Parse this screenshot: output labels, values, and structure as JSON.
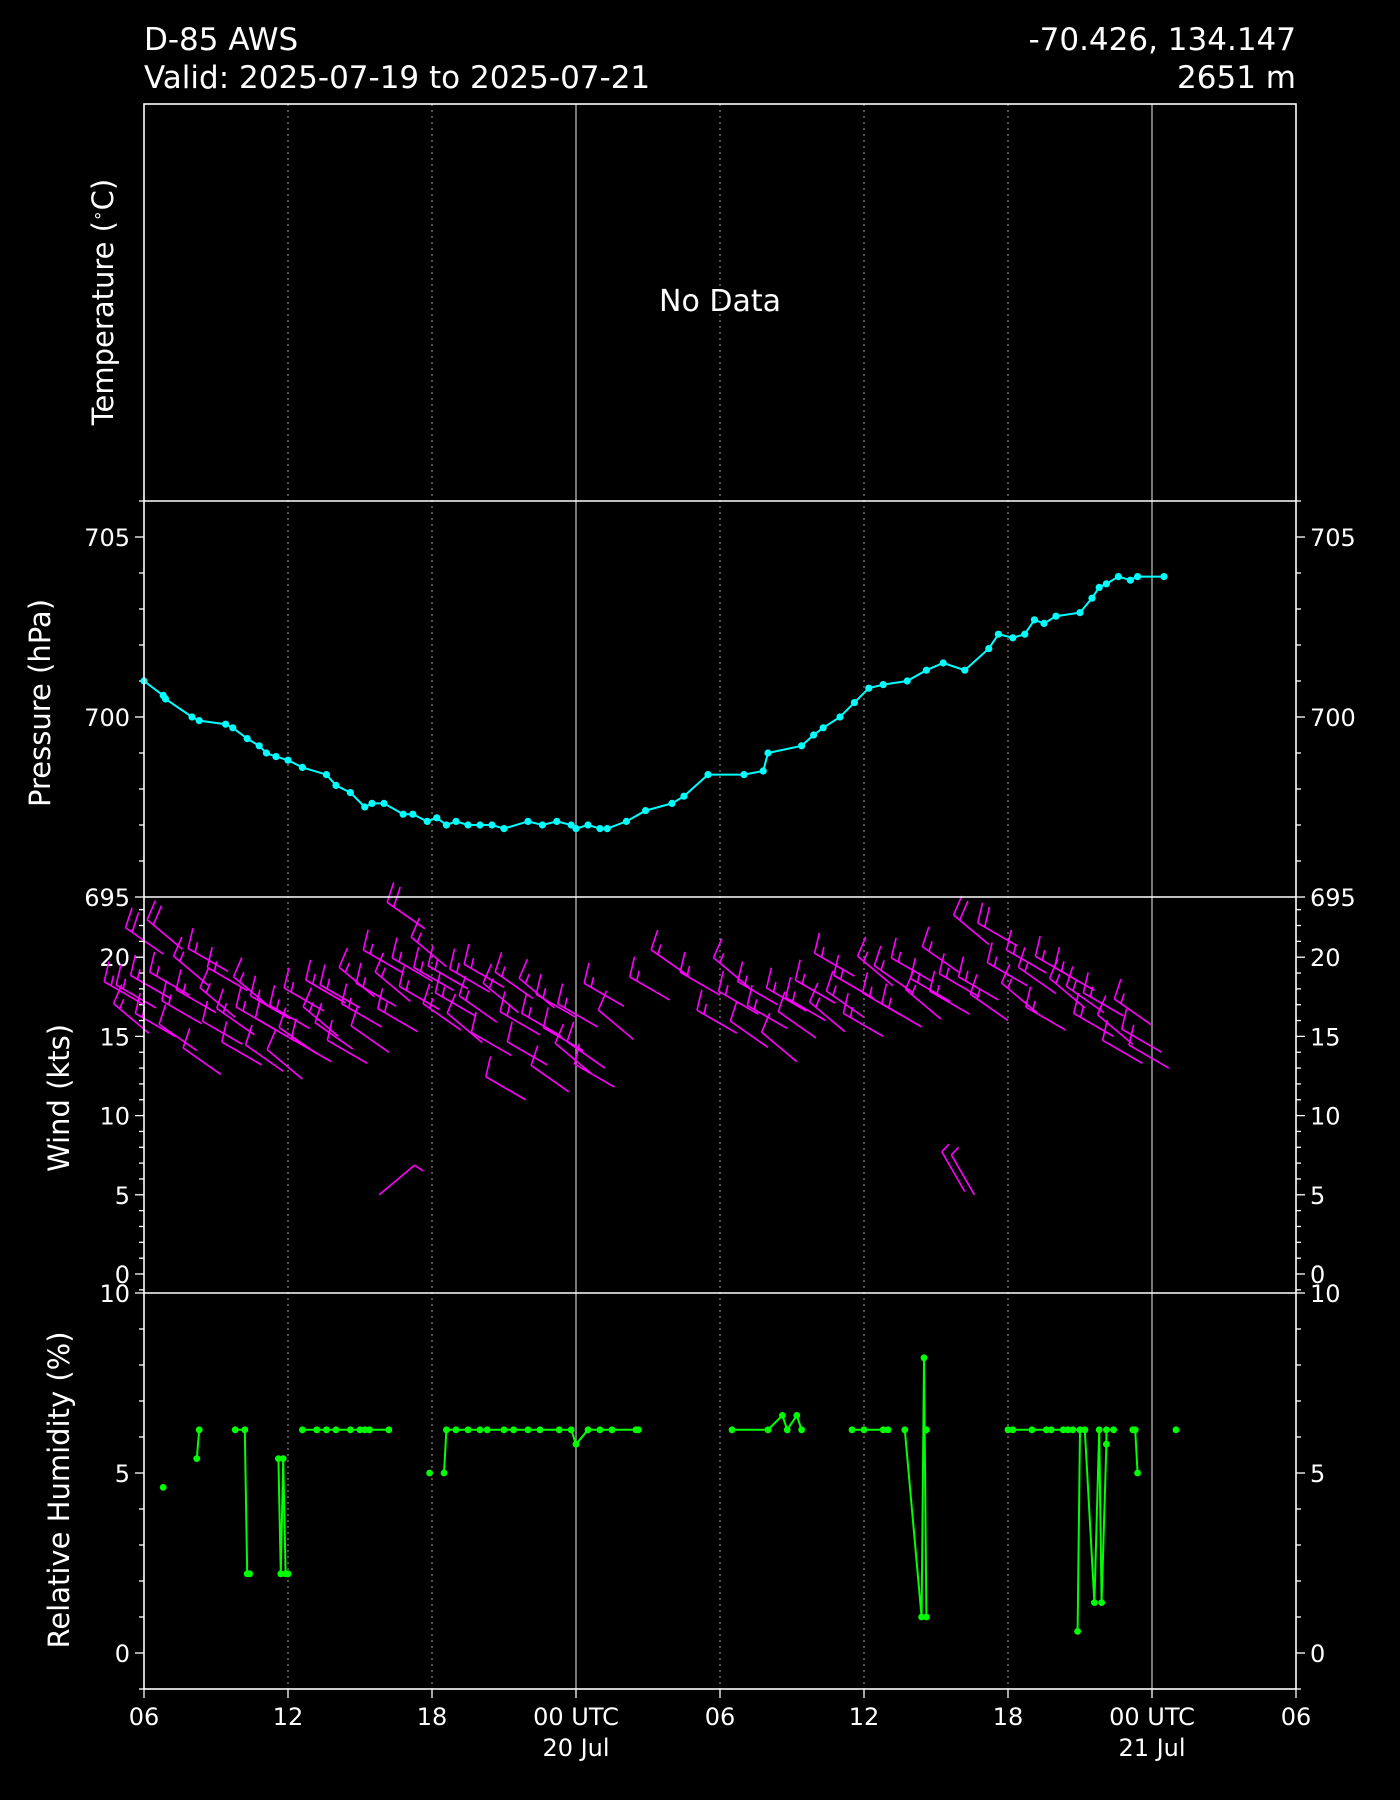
{
  "header": {
    "station": "D-85 AWS",
    "valid": "Valid: 2025-07-19 to 2025-07-21",
    "coords": "-70.426, 134.147",
    "elevation": "2651 m"
  },
  "colors": {
    "background": "#000000",
    "axes": "#ffffff",
    "pressure": "#00ffff",
    "wind": "#ff00ff",
    "humidity": "#00ff00"
  },
  "chart_data": [
    {
      "type": "line",
      "panel": "temperature",
      "ylabel": "Temperature ($^\\circ$C)",
      "ylabel_text": "Temperature (",
      "ylabel_deg": "∘",
      "ylabel_tail": "C)",
      "annotation": "No Data",
      "series": []
    },
    {
      "type": "line",
      "panel": "pressure",
      "ylabel": "Pressure (hPa)",
      "ylim": [
        695,
        706
      ],
      "yticks": [
        "695",
        "700",
        "705"
      ],
      "marker": "dot",
      "series": [
        {
          "x": [
            6.0,
            6.8,
            6.9,
            8.0,
            8.3,
            9.4,
            9.7,
            10.3,
            10.8,
            11.1,
            11.5,
            12.0,
            12.6,
            13.6,
            14.0,
            14.6,
            15.2,
            15.5,
            16.0,
            16.8,
            17.2,
            17.8,
            18.2,
            18.6,
            19.0,
            19.5,
            20.0,
            20.5,
            21.0,
            22.0,
            22.6,
            23.2,
            23.8,
            24.0,
            24.5,
            25.0,
            25.3,
            26.1,
            26.9,
            28.0,
            28.5,
            29.5,
            31.0,
            31.8,
            32.0,
            33.4,
            33.9,
            34.3,
            35.0,
            35.6,
            36.2,
            36.8,
            37.8,
            38.6,
            39.3,
            40.2,
            41.2,
            41.6,
            42.2,
            42.7,
            43.1,
            43.5,
            44.0,
            45.0,
            45.5,
            45.8,
            46.1,
            46.6,
            47.1,
            47.4,
            48.5
          ],
          "y": [
            701.0,
            700.6,
            700.5,
            700.0,
            699.9,
            699.8,
            699.7,
            699.4,
            699.2,
            699.0,
            698.9,
            698.8,
            698.6,
            698.4,
            698.1,
            697.9,
            697.5,
            697.6,
            697.6,
            697.3,
            697.3,
            697.1,
            697.2,
            697.0,
            697.1,
            697.0,
            697.0,
            697.0,
            696.9,
            697.1,
            697.0,
            697.1,
            697.0,
            696.9,
            697.0,
            696.9,
            696.9,
            697.1,
            697.4,
            697.6,
            697.8,
            698.4,
            698.4,
            698.5,
            699.0,
            699.2,
            699.5,
            699.7,
            700.0,
            700.4,
            700.8,
            700.9,
            701.0,
            701.3,
            701.5,
            701.3,
            701.9,
            702.3,
            702.2,
            702.3,
            702.7,
            702.6,
            702.8,
            702.9,
            703.3,
            703.6,
            703.7,
            703.9,
            703.8,
            703.9,
            703.9
          ]
        }
      ]
    },
    {
      "type": "scatter",
      "panel": "wind",
      "ylabel": "Wind (kts)",
      "ylim": [
        -1.2,
        23.8
      ],
      "yticks": [
        "0",
        "5",
        "10",
        "15",
        "20"
      ],
      "glyph": "wind barb",
      "series": [
        {
          "x": [
            6.0,
            6.2,
            6.5,
            6.8,
            7.1,
            7.3,
            7.6,
            7.9,
            8.2,
            8.4,
            8.7,
            9.0,
            9.2,
            9.5,
            9.8,
            10.1,
            10.3,
            10.6,
            10.9,
            11.2,
            11.5,
            11.8,
            12.1,
            12.3,
            12.6,
            12.9,
            13.2,
            13.5,
            13.8,
            14.1,
            14.4,
            14.7,
            15.0,
            15.3,
            15.6,
            15.9,
            16.2,
            16.5,
            16.8,
            17.1,
            17.4,
            17.7,
            18.0,
            18.3,
            18.6,
            18.9,
            19.2,
            19.5,
            19.8,
            20.1,
            20.4,
            20.7,
            21.0,
            21.3,
            21.6,
            21.9,
            22.2,
            22.5,
            22.8,
            23.1,
            23.4,
            23.7,
            24.0,
            24.3,
            24.6,
            24.9,
            25.2,
            25.6,
            26.0,
            26.4,
            27.9,
            28.7,
            30.0,
            30.7,
            31.2,
            31.6,
            32.0,
            32.4,
            32.8,
            33.2,
            33.6,
            34.0,
            34.4,
            34.8,
            35.2,
            35.6,
            36.0,
            36.4,
            36.8,
            37.2,
            37.6,
            38.0,
            38.4,
            38.8,
            39.2,
            39.6,
            40.0,
            40.4,
            40.8,
            41.2,
            41.6,
            42.0,
            42.4,
            42.8,
            43.2,
            43.6,
            44.0,
            44.4,
            44.8,
            45.2,
            45.6,
            46.0,
            46.4,
            46.8,
            47.2,
            47.6,
            48.0,
            48.4,
            48.7
          ],
          "y": [
            17.0,
            15.2,
            16.8,
            20.2,
            17.4,
            15.0,
            20.5,
            17.6,
            14.1,
            15.8,
            18.2,
            16.5,
            12.6,
            19.1,
            16.2,
            14.5,
            17.9,
            15.1,
            13.2,
            16.9,
            15.4,
            12.8,
            16.1,
            14.7,
            12.3,
            15.5,
            13.9,
            16.6,
            13.4,
            15.0,
            17.1,
            14.2,
            16.8,
            13.3,
            17.5,
            15.6,
            14.0,
            16.9,
            19.0,
            17.2,
            15.3,
            21.8,
            18.5,
            16.7,
            19.4,
            17.9,
            15.4,
            18.0,
            16.3,
            14.6,
            17.8,
            15.9,
            18.1,
            13.8,
            16.5,
            11.0,
            17.4,
            15.1,
            13.2,
            16.8,
            15.0,
            11.5,
            16.2,
            14.1,
            12.7,
            15.6,
            13.0,
            11.8,
            16.9,
            14.8,
            17.3,
            18.8,
            17.6,
            15.2,
            18.1,
            16.4,
            14.3,
            17.0,
            15.5,
            13.4,
            16.6,
            14.9,
            16.0,
            17.1,
            15.3,
            18.8,
            16.2,
            17.4,
            15.0,
            18.2,
            16.3,
            17.8,
            15.6,
            18.5,
            16.1,
            17.2,
            19.0,
            16.4,
            17.5,
            20.8,
            17.3,
            16.0,
            20.7,
            18.2,
            16.5,
            19.0,
            17.7,
            15.4,
            18.6,
            16.8,
            17.9,
            16.5,
            15.0,
            16.3,
            14.5,
            13.3,
            15.7,
            14.0,
            13.0
          ],
          "wind_dir_deg": [
            300,
            310,
            300,
            305,
            300,
            300,
            310,
            300,
            305,
            300,
            310,
            300,
            305,
            300,
            310,
            300,
            300,
            305,
            300,
            310,
            300,
            305,
            300,
            300,
            310,
            300,
            305,
            300,
            300,
            310,
            300,
            305,
            300,
            300,
            310,
            300,
            305,
            300,
            300,
            310,
            300,
            305,
            300,
            300,
            310,
            300,
            305,
            300,
            300,
            310,
            300,
            305,
            300,
            300,
            310,
            300,
            305,
            300,
            300,
            310,
            300,
            305,
            300,
            300,
            310,
            300,
            305,
            300,
            300,
            310,
            300,
            305,
            300,
            300,
            310,
            300,
            305,
            300,
            300,
            310,
            300,
            305,
            300,
            300,
            310,
            300,
            305,
            300,
            300,
            310,
            300,
            305,
            300,
            300,
            310,
            300,
            305,
            300,
            300,
            310,
            300,
            305,
            300,
            300,
            310,
            300,
            305,
            300,
            300,
            310,
            300,
            305,
            300,
            300,
            310,
            300,
            305,
            300,
            300
          ]
        },
        {
          "x": [
            15.8,
            40.2,
            40.6
          ],
          "y": [
            5.0,
            5.2,
            5.0
          ],
          "wind_dir_deg": [
            50,
            330,
            330
          ],
          "note_light": true
        }
      ]
    },
    {
      "type": "line",
      "panel": "humidity",
      "ylabel": "Relative Humidity (%)",
      "ylim": [
        -1.0,
        10.0
      ],
      "yticks": [
        "0",
        "5",
        "10"
      ],
      "marker": "dot",
      "series": [
        {
          "segments": [
            {
              "x": [
                6.8
              ],
              "y": [
                4.6
              ]
            },
            {
              "x": [
                8.2,
                8.3
              ],
              "y": [
                5.4,
                6.2
              ]
            },
            {
              "x": [
                9.8,
                10.2,
                10.3,
                10.4
              ],
              "y": [
                6.2,
                6.2,
                2.2,
                2.2
              ]
            },
            {
              "x": [
                11.6,
                11.7,
                11.8,
                11.9,
                12.0
              ],
              "y": [
                5.4,
                2.2,
                5.4,
                2.2,
                2.2
              ]
            },
            {
              "x": [
                12.6,
                13.2,
                13.6,
                14.0,
                14.6,
                15.0,
                15.2,
                15.4,
                16.2
              ],
              "y": [
                6.2,
                6.2,
                6.2,
                6.2,
                6.2,
                6.2,
                6.2,
                6.2,
                6.2
              ]
            },
            {
              "x": [
                17.9
              ],
              "y": [
                5.0
              ]
            },
            {
              "x": [
                18.5,
                18.6,
                19.0,
                19.5,
                20.0,
                20.3,
                21.0,
                21.4,
                22.0,
                22.5,
                23.3,
                23.8,
                24.0,
                24.5,
                25.0,
                25.5,
                26.5,
                26.6
              ],
              "y": [
                5.0,
                6.2,
                6.2,
                6.2,
                6.2,
                6.2,
                6.2,
                6.2,
                6.2,
                6.2,
                6.2,
                6.2,
                5.8,
                6.2,
                6.2,
                6.2,
                6.2,
                6.2
              ]
            },
            {
              "x": [
                30.5,
                32.0,
                32.6,
                32.8,
                33.2,
                33.4
              ],
              "y": [
                6.2,
                6.2,
                6.6,
                6.2,
                6.6,
                6.2
              ]
            },
            {
              "x": [
                35.5,
                36.0,
                36.8,
                37.0
              ],
              "y": [
                6.2,
                6.2,
                6.2,
                6.2
              ]
            },
            {
              "x": [
                37.7,
                38.4,
                38.5,
                38.6
              ],
              "y": [
                6.2,
                1.0,
                8.2,
                1.0
              ]
            },
            {
              "x": [
                38.6
              ],
              "y": [
                6.2
              ]
            },
            {
              "x": [
                42.0,
                42.2,
                43.0,
                43.6,
                43.8,
                44.3,
                44.5,
                44.7,
                45.2
              ],
              "y": [
                6.2,
                6.2,
                6.2,
                6.2,
                6.2,
                6.2,
                6.2,
                6.2,
                6.2
              ]
            },
            {
              "x": [
                44.9,
                45.0,
                45.2,
                45.6,
                45.8,
                45.9,
                46.1,
                46.1,
                46.4
              ],
              "y": [
                0.6,
                6.2,
                6.2,
                1.4,
                6.2,
                1.4,
                5.8,
                6.2,
                6.2
              ]
            },
            {
              "x": [
                47.2,
                47.3,
                47.4
              ],
              "y": [
                6.2,
                6.2,
                5.0
              ]
            },
            {
              "x": [
                49.0
              ],
              "y": [
                6.2
              ]
            }
          ]
        }
      ]
    }
  ],
  "x_axis": {
    "ticks": [
      {
        "hour": 6,
        "line1": "06",
        "line2": ""
      },
      {
        "hour": 12,
        "line1": "12",
        "line2": ""
      },
      {
        "hour": 18,
        "line1": "18",
        "line2": ""
      },
      {
        "hour": 24,
        "line1": "00 UTC",
        "line2": "20 Jul"
      },
      {
        "hour": 30,
        "line1": "06",
        "line2": ""
      },
      {
        "hour": 36,
        "line1": "12",
        "line2": ""
      },
      {
        "hour": 42,
        "line1": "18",
        "line2": ""
      },
      {
        "hour": 48,
        "line1": "00 UTC",
        "line2": "21 Jul"
      },
      {
        "hour": 54,
        "line1": "06",
        "line2": ""
      }
    ],
    "range_hours": [
      6,
      54
    ]
  }
}
